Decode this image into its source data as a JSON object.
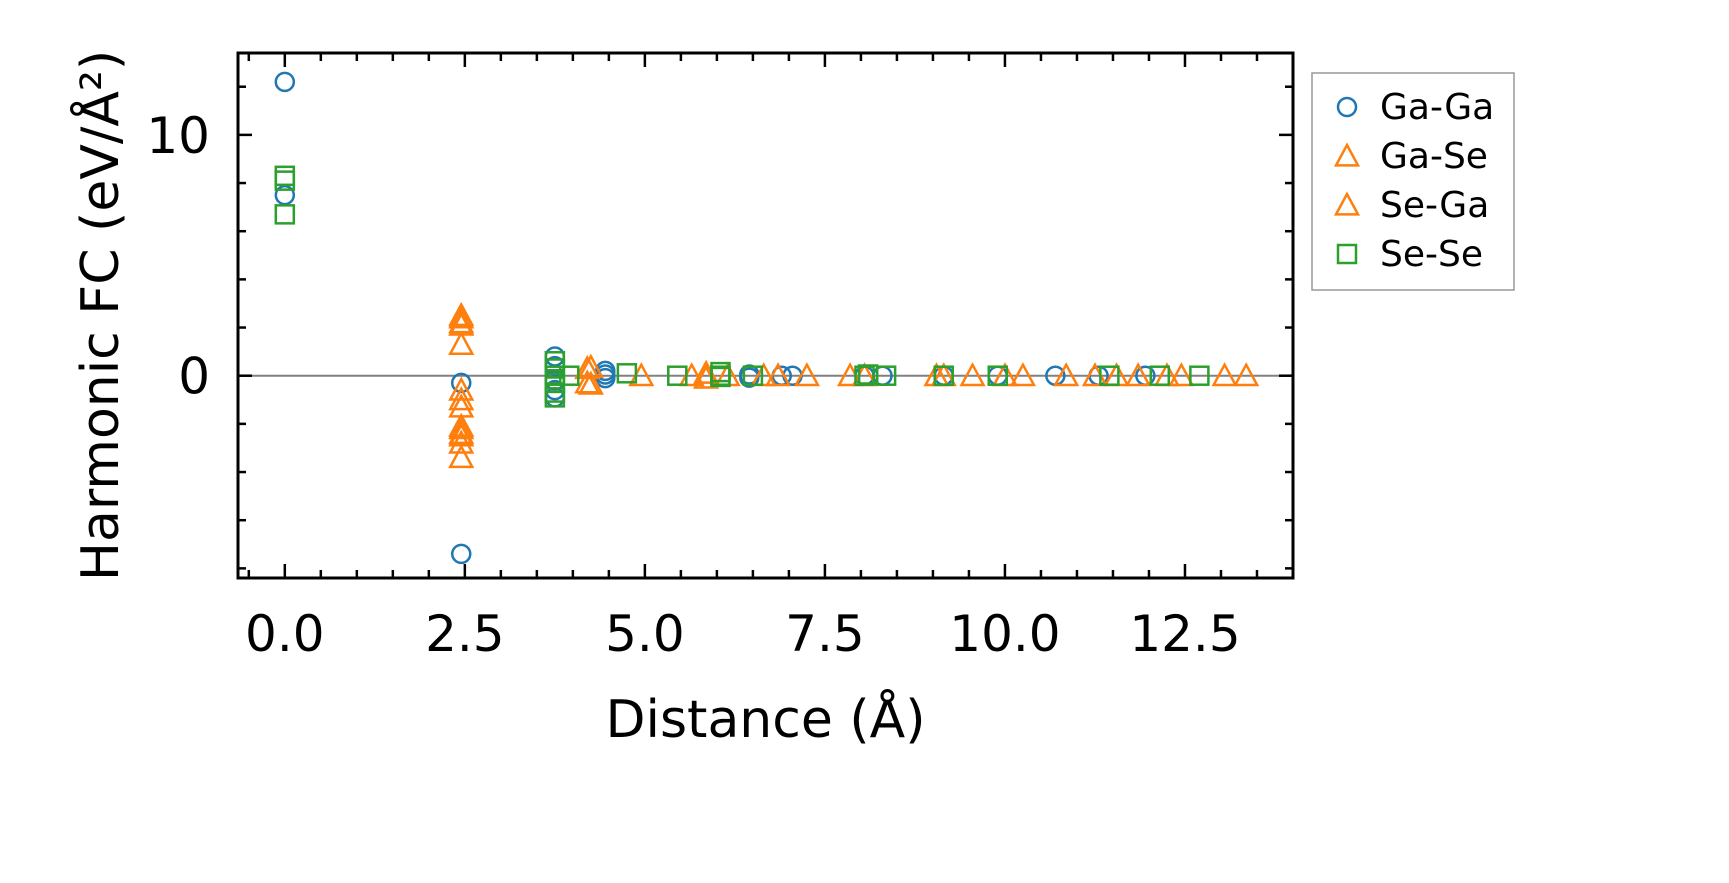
{
  "chart_data": {
    "type": "scatter",
    "xlabel": "Distance (Å)",
    "ylabel": "Harmonic FC (eV/Å²)",
    "xlim": [
      -0.65,
      14.0
    ],
    "ylim": [
      -8.4,
      13.4
    ],
    "x_ticks": [
      0.0,
      2.5,
      5.0,
      7.5,
      10.0,
      12.5
    ],
    "x_tick_labels": [
      "0.0",
      "2.5",
      "5.0",
      "7.5",
      "10.0",
      "12.5"
    ],
    "x_minor_step": 0.5,
    "y_ticks": [
      0,
      10
    ],
    "y_tick_labels": [
      "0",
      "10"
    ],
    "y_minor_step": 2,
    "reference_line_y": 0,
    "legend_position": "outside-right-top",
    "series": [
      {
        "name": "Ga-Ga",
        "marker": "circle",
        "color": "#1f77b4",
        "points": [
          [
            0.0,
            12.2
          ],
          [
            0.0,
            7.5
          ],
          [
            2.45,
            -0.3
          ],
          [
            2.45,
            -7.4
          ],
          [
            3.75,
            0.8
          ],
          [
            3.75,
            0.4
          ],
          [
            3.75,
            -0.2
          ],
          [
            3.75,
            -0.6
          ],
          [
            3.75,
            -0.9
          ],
          [
            4.45,
            0.2
          ],
          [
            4.45,
            0.05
          ],
          [
            4.45,
            -0.1
          ],
          [
            6.45,
            0.05
          ],
          [
            6.45,
            -0.08
          ],
          [
            6.9,
            0.0
          ],
          [
            7.05,
            0.0
          ],
          [
            8.05,
            0.0
          ],
          [
            8.3,
            0.0
          ],
          [
            9.15,
            0.0
          ],
          [
            9.9,
            0.0
          ],
          [
            10.7,
            0.0
          ],
          [
            11.3,
            0.0
          ],
          [
            11.95,
            0.0
          ]
        ]
      },
      {
        "name": "Ga-Se",
        "marker": "triangle",
        "color": "#ff7f0e",
        "points": [
          [
            2.45,
            2.5
          ],
          [
            2.45,
            2.2
          ],
          [
            2.45,
            1.3
          ],
          [
            2.45,
            -0.6
          ],
          [
            2.45,
            -1.3
          ],
          [
            2.45,
            -2.2
          ],
          [
            2.45,
            -2.5
          ],
          [
            2.45,
            -2.8
          ],
          [
            4.2,
            0.3
          ],
          [
            4.2,
            -0.3
          ],
          [
            5.65,
            0.0
          ],
          [
            5.85,
            0.1
          ],
          [
            6.65,
            0.0
          ],
          [
            7.25,
            0.0
          ],
          [
            7.85,
            0.0
          ],
          [
            9.05,
            0.0
          ],
          [
            9.55,
            0.0
          ],
          [
            10.25,
            0.0
          ],
          [
            11.25,
            0.0
          ],
          [
            11.85,
            0.0
          ],
          [
            12.45,
            0.0
          ],
          [
            13.05,
            0.0
          ]
        ]
      },
      {
        "name": "Se-Ga",
        "marker": "triangle",
        "color": "#ff7f0e",
        "points": [
          [
            2.45,
            2.4
          ],
          [
            2.45,
            2.1
          ],
          [
            2.45,
            -1.0
          ],
          [
            2.45,
            -2.1
          ],
          [
            2.45,
            -2.4
          ],
          [
            2.45,
            -3.4
          ],
          [
            4.25,
            0.35
          ],
          [
            4.25,
            -0.35
          ],
          [
            4.95,
            0.0
          ],
          [
            5.85,
            -0.1
          ],
          [
            6.15,
            0.0
          ],
          [
            6.85,
            0.0
          ],
          [
            8.05,
            0.0
          ],
          [
            9.15,
            0.0
          ],
          [
            10.0,
            0.0
          ],
          [
            10.85,
            0.0
          ],
          [
            11.55,
            0.0
          ],
          [
            12.25,
            0.0
          ],
          [
            13.35,
            0.0
          ]
        ]
      },
      {
        "name": "Se-Se",
        "marker": "square",
        "color": "#2ca02c",
        "points": [
          [
            0.0,
            8.3
          ],
          [
            0.0,
            8.1
          ],
          [
            0.0,
            6.7
          ],
          [
            3.75,
            0.6
          ],
          [
            3.75,
            0.3
          ],
          [
            3.75,
            0.0
          ],
          [
            3.75,
            -0.3
          ],
          [
            3.75,
            -0.7
          ],
          [
            3.75,
            -0.9
          ],
          [
            3.95,
            0.0
          ],
          [
            4.75,
            0.1
          ],
          [
            5.45,
            0.0
          ],
          [
            6.05,
            0.15
          ],
          [
            6.05,
            -0.05
          ],
          [
            6.05,
            0.0
          ],
          [
            6.5,
            0.0
          ],
          [
            8.05,
            0.0
          ],
          [
            8.1,
            0.05
          ],
          [
            8.35,
            0.0
          ],
          [
            9.15,
            0.0
          ],
          [
            9.9,
            0.0
          ],
          [
            11.45,
            0.0
          ],
          [
            12.15,
            0.0
          ],
          [
            12.7,
            0.0
          ]
        ]
      }
    ]
  }
}
